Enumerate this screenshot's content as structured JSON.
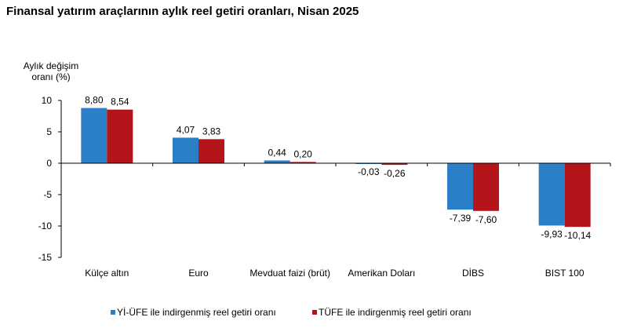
{
  "chart_data": {
    "type": "bar",
    "title": "Finansal yatırım araçlarının aylık reel getiri oranları, Nisan 2025",
    "ylabel": [
      "Aylık değişim",
      "oranı (%)"
    ],
    "xlabel": "",
    "ylim": [
      -15,
      10
    ],
    "yticks": [
      10,
      5,
      0,
      -5,
      -10,
      -15
    ],
    "grid": false,
    "legend_position": "bottom",
    "categories": [
      "Külçe altın",
      "Euro",
      "Mevduat faizi (brüt)",
      "Amerikan Doları",
      "DİBS",
      "BIST 100"
    ],
    "series": [
      {
        "name": "Yİ-ÜFE ile indirgenmiş reel getiri oranı",
        "color": "#2a7fc6",
        "values": [
          8.8,
          4.07,
          0.44,
          -0.03,
          -7.39,
          -9.93
        ],
        "labels": [
          "8,80",
          "4,07",
          "0,44",
          "-0,03",
          "-7,39",
          "-9,93"
        ]
      },
      {
        "name": "TÜFE ile indirgenmiş reel getiri oranı",
        "color": "#b3151b",
        "values": [
          8.54,
          3.83,
          0.2,
          -0.26,
          -7.6,
          -10.14
        ],
        "labels": [
          "8,54",
          "3,83",
          "0,20",
          "-0,26",
          "-7,60",
          "-10,14"
        ]
      }
    ]
  }
}
